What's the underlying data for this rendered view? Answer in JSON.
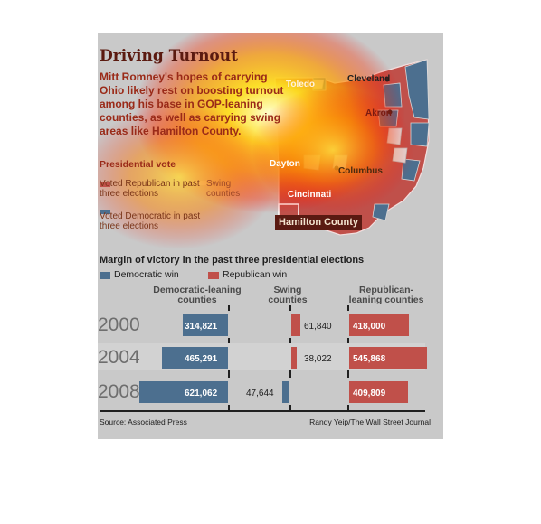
{
  "header": {
    "title": "Driving Turnout",
    "intro": "Mitt Romney's hopes of carrying Ohio likely rest on boosting turnout among his base in GOP-leaning counties, as well as carrying swing areas like Hamilton County."
  },
  "map": {
    "legend_title": "Presidential vote",
    "legend_republican": "Voted Republican in past three elections",
    "legend_democratic": "Voted Democratic in past three elections",
    "legend_swing": "Swing counties",
    "cities": [
      "Toledo",
      "Cleveland",
      "Akron",
      "Dayton",
      "Columbus",
      "Cincinnati"
    ],
    "callout": "Hamilton County",
    "colors": {
      "republican": "#c0504a",
      "democratic": "#4c6f8f",
      "swing": "#e0e0e0"
    }
  },
  "chart_data": {
    "type": "bar",
    "title": "Margin of victory in the past three presidential elections",
    "legend": [
      "Democratic win",
      "Republican win"
    ],
    "groups": [
      "Democratic-leaning counties",
      "Swing counties",
      "Republican-leaning counties"
    ],
    "categories": [
      "2000",
      "2004",
      "2008"
    ],
    "series": [
      {
        "group": "Democratic-leaning counties",
        "winner": "Democratic",
        "values": [
          314821,
          465291,
          621062
        ],
        "labels": [
          "314,821",
          "465,291",
          "621,062"
        ]
      },
      {
        "group": "Swing counties",
        "winner": [
          "Republican",
          "Republican",
          "Democratic"
        ],
        "values": [
          61840,
          38022,
          47644
        ],
        "labels": [
          "61,840",
          "38,022",
          "47,644"
        ]
      },
      {
        "group": "Republican-leaning counties",
        "winner": "Republican",
        "values": [
          418000,
          545868,
          409809
        ],
        "labels": [
          "418,000",
          "545,868",
          "409,809"
        ]
      }
    ],
    "colors": {
      "democratic": "#4c6f8f",
      "republican": "#c0504a"
    }
  },
  "footer": {
    "source": "Source: Associated Press",
    "credit": "Randy Yeip/The Wall Street Journal"
  }
}
